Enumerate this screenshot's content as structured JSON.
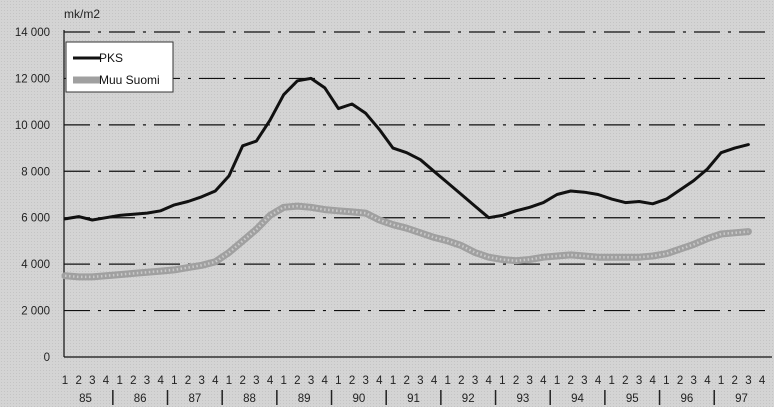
{
  "chart_data": {
    "type": "line",
    "unit_label": "mk/m2",
    "ylim": [
      0,
      14000
    ],
    "yticks": [
      0,
      2000,
      4000,
      6000,
      8000,
      10000,
      12000,
      14000
    ],
    "ytick_labels": [
      "0",
      "2 000",
      "4 000",
      "6 000",
      "8 000",
      "10 000",
      "12 000",
      "14 000"
    ],
    "quarter_labels": [
      "1",
      "2",
      "3",
      "4"
    ],
    "years": [
      "85",
      "86",
      "87",
      "88",
      "89",
      "90",
      "91",
      "92",
      "93",
      "94",
      "95",
      "96",
      "97"
    ],
    "grid": "dash-dot horizontal",
    "legend_position": "top-left",
    "series": [
      {
        "name": "PKS",
        "color": "#111111",
        "style": "solid",
        "values": [
          5950,
          6050,
          5900,
          6000,
          6100,
          6150,
          6200,
          6300,
          6550,
          6700,
          6900,
          7150,
          7800,
          9100,
          9300,
          10200,
          11300,
          11900,
          12000,
          11600,
          10700,
          10900,
          10500,
          9800,
          9000,
          8800,
          8500,
          8000,
          7500,
          7000,
          6500,
          6000,
          6100,
          6300,
          6450,
          6650,
          7000,
          7150,
          7100,
          7000,
          6800,
          6650,
          6700,
          6600,
          6800,
          7200,
          7600,
          8100,
          8800,
          9000,
          9150
        ]
      },
      {
        "name": "Muu Suomi",
        "color": "#a0a0a0",
        "style": "thick-dotted",
        "values": [
          3500,
          3450,
          3450,
          3500,
          3550,
          3600,
          3650,
          3700,
          3750,
          3850,
          3950,
          4100,
          4500,
          5000,
          5500,
          6100,
          6450,
          6500,
          6450,
          6350,
          6300,
          6250,
          6200,
          5900,
          5700,
          5550,
          5350,
          5150,
          5000,
          4800,
          4500,
          4300,
          4200,
          4150,
          4200,
          4300,
          4350,
          4400,
          4350,
          4300,
          4300,
          4300,
          4300,
          4350,
          4450,
          4650,
          4850,
          5100,
          5300,
          5350,
          5400
        ]
      }
    ]
  }
}
